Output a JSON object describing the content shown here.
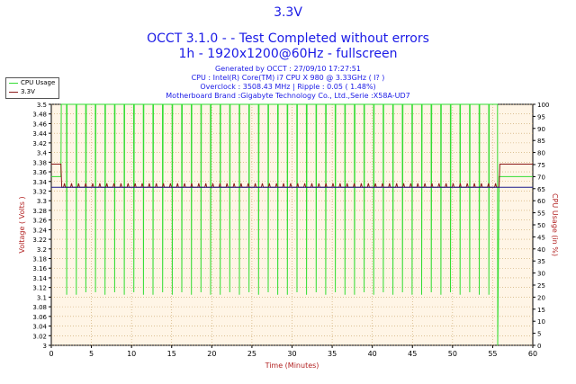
{
  "header": {
    "title": "3.3V",
    "subtitle": "OCCT 3.1.0 -  - Test Completed without errors",
    "resolution": "1h - 1920x1200@60Hz - fullscreen",
    "generated": "Generated by OCCT : 27/09/10 17:27:51",
    "cpu": "CPU : Intel(R) Core(TM) i7 CPU X 980 @ 3.33GHz (  l? )",
    "overclock": "Overclock : 3508.43 MHz | Ripple : 0.05 ( 1.48%)",
    "motherboard": "Motherboard Brand :Gigabyte Technology Co., Ltd.,Serie :X58A-UD7"
  },
  "colors": {
    "title": "#1a1ae6",
    "axis_label": "#b22222",
    "cpu_series": "#33dd33",
    "voltage_series": "#8b1a1a",
    "plot_bg": "#fff5e6",
    "grid": "#c8a060"
  },
  "chart_data": {
    "type": "line",
    "xlabel": "Time (Minutes)",
    "ylabel_left": "Voltage ( Volts )",
    "ylabel_right": "CPU Usage (in %)",
    "xlim": [
      0,
      60
    ],
    "ylim_left": [
      3.0,
      3.5
    ],
    "ylim_right": [
      0,
      100
    ],
    "x_ticks": [
      0,
      5,
      10,
      15,
      20,
      25,
      30,
      35,
      40,
      45,
      50,
      55,
      60
    ],
    "y_ticks_left": [
      "3",
      "3.02",
      "3.04",
      "3.06",
      "3.08",
      "3.1",
      "3.12",
      "3.14",
      "3.16",
      "3.18",
      "3.2",
      "3.22",
      "3.24",
      "3.26",
      "3.28",
      "3.3",
      "3.32",
      "3.34",
      "3.36",
      "3.38",
      "3.4",
      "3.42",
      "3.44",
      "3.46",
      "3.48",
      "3.5"
    ],
    "y_ticks_right": [
      "0",
      "5",
      "10",
      "15",
      "20",
      "25",
      "30",
      "35",
      "40",
      "45",
      "50",
      "55",
      "60",
      "65",
      "70",
      "75",
      "80",
      "85",
      "90",
      "95",
      "100"
    ],
    "grid": true,
    "legend_position": "top-left",
    "series": [
      {
        "name": "CPU Usage",
        "axis": "right",
        "baseline_before": 70,
        "baseline_after": 70,
        "active_range": [
          1.2,
          55.6
        ],
        "high_value": 100,
        "dip_values": [
          21,
          21,
          22,
          22,
          21,
          22,
          21,
          22,
          21,
          21,
          22,
          21,
          22,
          21,
          22,
          21,
          21,
          22,
          21,
          22,
          21,
          22,
          21,
          21,
          22,
          21,
          22,
          21,
          22,
          21,
          21,
          22,
          21,
          22,
          21,
          22,
          21,
          21,
          22,
          21,
          22,
          21,
          22,
          21,
          21
        ],
        "final_drop": 0
      },
      {
        "name": "3.3V",
        "axis": "left",
        "idle_value": 3.376,
        "load_value": 3.328,
        "spike_value": 3.336,
        "active_range": [
          1.2,
          55.8
        ]
      }
    ]
  }
}
